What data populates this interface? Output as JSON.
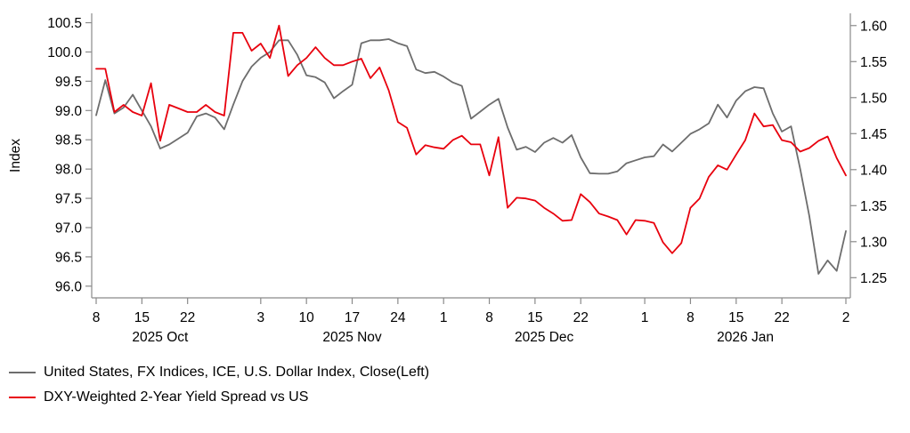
{
  "chart_data": {
    "type": "line",
    "title": "",
    "grid": false,
    "legend_position": "bottom-left",
    "x": {
      "dates": [
        "2025-10-08",
        "2025-10-09",
        "2025-10-10",
        "2025-10-13",
        "2025-10-14",
        "2025-10-15",
        "2025-10-16",
        "2025-10-17",
        "2025-10-20",
        "2025-10-21",
        "2025-10-22",
        "2025-10-23",
        "2025-10-24",
        "2025-10-27",
        "2025-10-28",
        "2025-10-29",
        "2025-10-30",
        "2025-10-31",
        "2025-11-03",
        "2025-11-04",
        "2025-11-05",
        "2025-11-06",
        "2025-11-07",
        "2025-11-10",
        "2025-11-11",
        "2025-11-12",
        "2025-11-13",
        "2025-11-14",
        "2025-11-17",
        "2025-11-18",
        "2025-11-19",
        "2025-11-20",
        "2025-11-21",
        "2025-11-24",
        "2025-11-25",
        "2025-11-26",
        "2025-11-27",
        "2025-11-28",
        "2025-12-01",
        "2025-12-02",
        "2025-12-03",
        "2025-12-04",
        "2025-12-05",
        "2025-12-08",
        "2025-12-09",
        "2025-12-10",
        "2025-12-11",
        "2025-12-12",
        "2025-12-15",
        "2025-12-16",
        "2025-12-17",
        "2025-12-18",
        "2025-12-19",
        "2025-12-22",
        "2025-12-23",
        "2025-12-24",
        "2025-12-26",
        "2025-12-29",
        "2025-12-30",
        "2025-12-31",
        "2026-01-01",
        "2026-01-02",
        "2026-01-05",
        "2026-01-06",
        "2026-01-07",
        "2026-01-08",
        "2026-01-09",
        "2026-01-12",
        "2026-01-13",
        "2026-01-14",
        "2026-01-15",
        "2026-01-16",
        "2026-01-19",
        "2026-01-20",
        "2026-01-21",
        "2026-01-22",
        "2026-01-23",
        "2026-01-26",
        "2026-01-27",
        "2026-01-28",
        "2026-01-29",
        "2026-01-30",
        "2026-02-02"
      ],
      "tick_dates": [
        "2025-10-08",
        "2025-10-15",
        "2025-10-22",
        "2025-11-03",
        "2025-11-10",
        "2025-11-17",
        "2025-11-24",
        "2025-12-01",
        "2025-12-08",
        "2025-12-15",
        "2025-12-22",
        "2026-01-01",
        "2026-01-08",
        "2026-01-15",
        "2026-01-22",
        "2026-02-02"
      ],
      "tick_labels": [
        "8",
        "15",
        "22",
        "3",
        "10",
        "17",
        "24",
        "1",
        "8",
        "15",
        "22",
        "1",
        "8",
        "15",
        "22",
        "2"
      ],
      "month_labels": [
        {
          "date": "2025-10-17",
          "text": "2025 Oct"
        },
        {
          "date": "2025-11-17",
          "text": "2025 Nov"
        },
        {
          "date": "2025-12-16",
          "text": "2025 Dec"
        },
        {
          "date": "2026-01-16",
          "text": "2026 Jan"
        }
      ]
    },
    "left_axis": {
      "label": "Index",
      "tick_values": [
        96.0,
        96.5,
        97.0,
        97.5,
        98.0,
        98.5,
        99.0,
        99.5,
        100.0,
        100.5
      ],
      "tick_labels": [
        "96.0",
        "96.5",
        "97.0",
        "97.5",
        "98.0",
        "98.5",
        "99.0",
        "99.5",
        "100.0",
        "100.5"
      ],
      "range": [
        95.8,
        100.66
      ]
    },
    "right_axis": {
      "label": "",
      "tick_values": [
        1.25,
        1.3,
        1.35,
        1.4,
        1.45,
        1.5,
        1.55,
        1.6
      ],
      "tick_labels": [
        "1.25",
        "1.30",
        "1.35",
        "1.40",
        "1.45",
        "1.50",
        "1.55",
        "1.60"
      ],
      "range": [
        1.222,
        1.617
      ]
    },
    "series": [
      {
        "name": "United States, FX Indices, ICE, U.S. Dollar Index, Close(Left)",
        "axis": "left",
        "color": "#6d6d6d",
        "values": [
          98.92,
          99.52,
          98.95,
          99.05,
          99.27,
          99.0,
          98.73,
          98.35,
          98.42,
          98.52,
          98.62,
          98.9,
          98.95,
          98.88,
          98.68,
          99.1,
          99.5,
          99.75,
          99.9,
          100.0,
          100.2,
          100.2,
          99.95,
          99.6,
          99.57,
          99.48,
          99.21,
          99.33,
          99.44,
          100.15,
          100.2,
          100.2,
          100.22,
          100.15,
          100.1,
          99.7,
          99.64,
          99.66,
          99.58,
          99.48,
          99.42,
          98.86,
          98.98,
          99.1,
          99.2,
          98.71,
          98.33,
          98.38,
          98.29,
          98.45,
          98.53,
          98.45,
          98.58,
          98.2,
          97.93,
          97.92,
          97.92,
          97.96,
          98.1,
          98.15,
          98.2,
          98.22,
          98.42,
          98.3,
          98.45,
          98.6,
          98.68,
          98.78,
          99.1,
          98.88,
          99.17,
          99.33,
          99.4,
          99.38,
          98.95,
          98.64,
          98.73,
          98.0,
          97.2,
          96.21,
          96.44,
          96.26,
          96.94
        ]
      },
      {
        "name": "DXY-Weighted 2-Year Yield Spread vs US",
        "axis": "right",
        "color": "#e8000d",
        "values": [
          1.54,
          1.54,
          1.48,
          1.49,
          1.48,
          1.475,
          1.52,
          1.44,
          1.49,
          1.485,
          1.48,
          1.48,
          1.49,
          1.48,
          1.475,
          1.59,
          1.59,
          1.565,
          1.575,
          1.555,
          1.6,
          1.53,
          1.545,
          1.555,
          1.57,
          1.555,
          1.545,
          1.545,
          1.55,
          1.554,
          1.527,
          1.542,
          1.51,
          1.466,
          1.458,
          1.421,
          1.434,
          1.431,
          1.429,
          1.441,
          1.447,
          1.435,
          1.435,
          1.392,
          1.445,
          1.347,
          1.361,
          1.36,
          1.357,
          1.347,
          1.339,
          1.329,
          1.33,
          1.366,
          1.355,
          1.339,
          1.335,
          1.33,
          1.31,
          1.33,
          1.329,
          1.326,
          1.299,
          1.284,
          1.298,
          1.347,
          1.36,
          1.39,
          1.406,
          1.4,
          1.421,
          1.441,
          1.478,
          1.46,
          1.462,
          1.441,
          1.438,
          1.425,
          1.43,
          1.44,
          1.446,
          1.416,
          1.392
        ]
      }
    ],
    "axis_color": "#8a8a8a",
    "text_color": "#000000"
  }
}
